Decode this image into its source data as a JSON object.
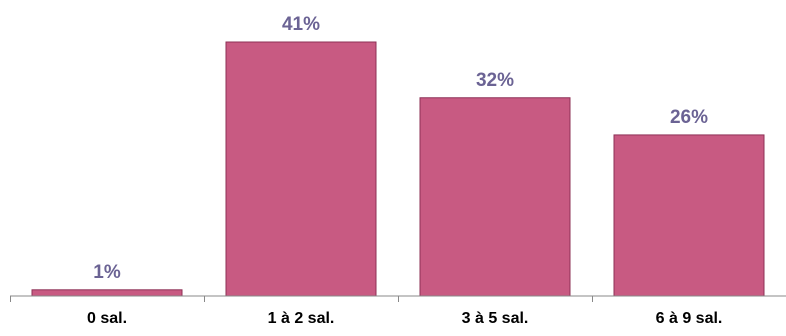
{
  "chart_data": {
    "type": "bar",
    "categories": [
      "0 sal.",
      "1 à 2 sal.",
      "3 à 5 sal.",
      "6 à 9 sal."
    ],
    "values": [
      1,
      41,
      32,
      26
    ],
    "data_labels": [
      "1%",
      "41%",
      "32%",
      "26%"
    ],
    "title": "",
    "xlabel": "",
    "ylabel": "",
    "ylim": [
      0,
      41
    ],
    "grid": false,
    "colors": {
      "bar_fill": "#C85A82",
      "bar_stroke": "#8E3056",
      "label": "#6B6394",
      "axis": "#888888"
    }
  }
}
